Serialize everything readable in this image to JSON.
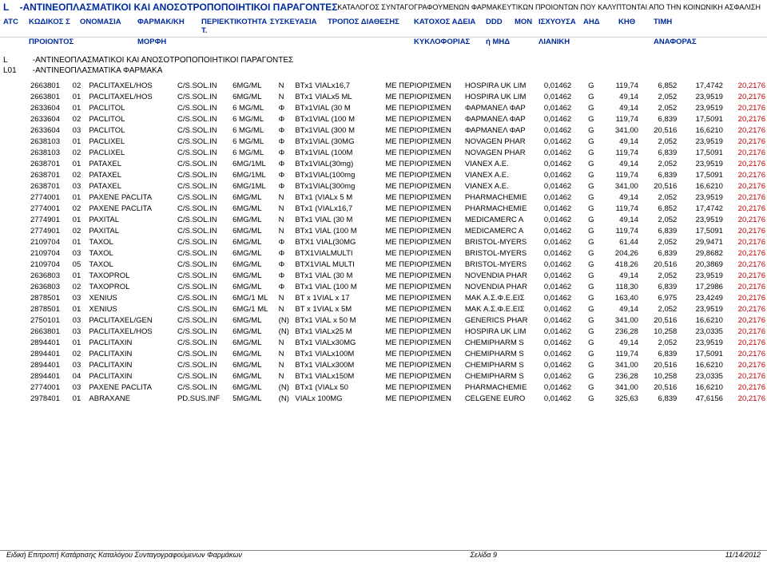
{
  "catalog_header": "ΚΑΤΑΛΟΓΟΣ ΣΥΝΤΑΓΟΓΡΑΦΟΥΜΕΝΩΝ ΦΑΡΜΑΚΕΥΤΙΚΩΝ ΠΡΟΙΟΝΤΩΝ ΠΟΥ ΚΑΛΥΠΤΟΝΤΑΙ ΑΠΟ ΤΗΝ ΚΟΙΝΩΝΙΚΗ ΑΣΦΑΛΙΣΗ",
  "section_code": "L",
  "section_title": "-ΑΝΤΙΝΕΟΠΛΑΣΜΑΤΙΚΟΙ ΚΑΙ ΑΝΟΣΟΤΡΟΠΟΠΟΙΗΤΙΚΟΙ ΠΑΡΑΓΟΝΤΕΣ",
  "headers1": {
    "atc": "ATC",
    "code": "ΚΩΔΙΚΟΣ  Σ",
    "name": "ΟΝΟΜΑΣΙΑ",
    "form": "ΦΑΡΜΑΚ/ΚΗ",
    "conc": "ΠΕΡΙΕΚΤΙΚΟΤΗΤΑ Τ.",
    "pack": "ΣΥΣΚΕΥΑΣΙΑ",
    "route": "ΤΡΟΠΟΣ ΔΙΑΘΕΣΗΣ",
    "holder": "ΚΑΤΟΧΟΣ ΑΔΕΙΑ",
    "ddd": "DDD",
    "unit": "ΜΟΝ",
    "p1": "ΙΣΧΥΟΥΣΑ",
    "p2": "ΑΗΔ",
    "p3": "ΚΗΘ",
    "p4": "ΤΙΜΗ"
  },
  "headers2": {
    "code": "ΠΡΟΙΟΝΤΟΣ",
    "form": "ΜΟΡΦΗ",
    "holder": "ΚΥΚΛΟΦΟΡΙΑΣ",
    "ddd": "ή ΜΗΔ",
    "p1": "ΛΙΑΝΙΚΗ",
    "p4": "ΑΝΑΦΟΡΑΣ"
  },
  "sub_code": "L",
  "sub_title": "-ΑΝΤΙΝΕΟΠΛΑΣΜΑΤΙΚΟΙ ΚΑΙ ΑΝΟΣΟΤΡΟΠΟΠΟΙΗΤΙΚΟΙ ΠΑΡΑΓΟΝΤΕΣ",
  "subsub_code": "L01",
  "subsub_title": "-ΑΝΤΙΝΕΟΠΛΑΣΜΑΤΙΚΑ ΦΑΡΜΑΚΑ",
  "rows": [
    {
      "code": "2663801",
      "seq": "02",
      "name": "PACLITAXEL/HOS",
      "form": "C/S.SOL.IN",
      "conc": "6MG/ML",
      "letter": "N",
      "pack": "BTx1 VIALx16,7",
      "restr": "ΜΕ ΠΕΡΙΟΡΙΣΜΕΝ",
      "holder": "HOSPIRA UK LIM",
      "ddd": "0,01462",
      "unit": "G",
      "p1": "119,74",
      "p2": "6,852",
      "p3": "17,4742",
      "p4": "20,2176"
    },
    {
      "code": "2663801",
      "seq": "01",
      "name": "PACLITAXEL/HOS",
      "form": "C/S.SOL.IN",
      "conc": "6MG/ML",
      "letter": "N",
      "pack": "BTx1 VIALx5 ML",
      "restr": "ΜΕ ΠΕΡΙΟΡΙΣΜΕΝ",
      "holder": "HOSPIRA UK LIM",
      "ddd": "0,01462",
      "unit": "G",
      "p1": "49,14",
      "p2": "2,052",
      "p3": "23,9519",
      "p4": "20,2176"
    },
    {
      "code": "2633604",
      "seq": "01",
      "name": "PACLITOL",
      "form": "C/S.SOL.IN",
      "conc": "6 MG/ML",
      "letter": "Φ",
      "pack": "BTx1VIAL (30 M",
      "restr": "ΜΕ ΠΕΡΙΟΡΙΣΜΕΝ",
      "holder": "ΦΑΡΜΑΝΕΛ ΦΑΡ",
      "ddd": "0,01462",
      "unit": "G",
      "p1": "49,14",
      "p2": "2,052",
      "p3": "23,9519",
      "p4": "20,2176"
    },
    {
      "code": "2633604",
      "seq": "02",
      "name": "PACLITOL",
      "form": "C/S.SOL.IN",
      "conc": "6 MG/ML",
      "letter": "Φ",
      "pack": "BTx1VIAL (100 M",
      "restr": "ΜΕ ΠΕΡΙΟΡΙΣΜΕΝ",
      "holder": "ΦΑΡΜΑΝΕΛ ΦΑΡ",
      "ddd": "0,01462",
      "unit": "G",
      "p1": "119,74",
      "p2": "6,839",
      "p3": "17,5091",
      "p4": "20,2176"
    },
    {
      "code": "2633604",
      "seq": "03",
      "name": "PACLITOL",
      "form": "C/S.SOL.IN",
      "conc": "6 MG/ML",
      "letter": "Φ",
      "pack": "BTx1VIAL (300 M",
      "restr": "ΜΕ ΠΕΡΙΟΡΙΣΜΕΝ",
      "holder": "ΦΑΡΜΑΝΕΛ ΦΑΡ",
      "ddd": "0,01462",
      "unit": "G",
      "p1": "341,00",
      "p2": "20,516",
      "p3": "16,6210",
      "p4": "20,2176"
    },
    {
      "code": "2638103",
      "seq": "01",
      "name": "PACLIXEL",
      "form": "C/S.SOL.IN",
      "conc": "6 MG/ML",
      "letter": "Φ",
      "pack": "BTx1VIAL (30MG",
      "restr": "ΜΕ ΠΕΡΙΟΡΙΣΜΕΝ",
      "holder": "NOVAGEN PHAR",
      "ddd": "0,01462",
      "unit": "G",
      "p1": "49,14",
      "p2": "2,052",
      "p3": "23,9519",
      "p4": "20,2176"
    },
    {
      "code": "2638103",
      "seq": "02",
      "name": "PACLIXEL",
      "form": "C/S.SOL.IN",
      "conc": "6 MG/ML",
      "letter": "Φ",
      "pack": "BTx1VIAL (100M",
      "restr": "ΜΕ ΠΕΡΙΟΡΙΣΜΕΝ",
      "holder": "NOVAGEN PHAR",
      "ddd": "0,01462",
      "unit": "G",
      "p1": "119,74",
      "p2": "6,839",
      "p3": "17,5091",
      "p4": "20,2176"
    },
    {
      "code": "2638701",
      "seq": "01",
      "name": "PATAXEL",
      "form": "C/S.SOL.IN",
      "conc": "6MG/1ML",
      "letter": "Φ",
      "pack": "BTx1VIAL(30mg)",
      "restr": "ΜΕ ΠΕΡΙΟΡΙΣΜΕΝ",
      "holder": "VIANEX A.E.",
      "ddd": "0,01462",
      "unit": "G",
      "p1": "49,14",
      "p2": "2,052",
      "p3": "23,9519",
      "p4": "20,2176"
    },
    {
      "code": "2638701",
      "seq": "02",
      "name": "PATAXEL",
      "form": "C/S.SOL.IN",
      "conc": "6MG/1ML",
      "letter": "Φ",
      "pack": "BTx1VIAL(100mg",
      "restr": "ΜΕ ΠΕΡΙΟΡΙΣΜΕΝ",
      "holder": "VIANEX A.E.",
      "ddd": "0,01462",
      "unit": "G",
      "p1": "119,74",
      "p2": "6,839",
      "p3": "17,5091",
      "p4": "20,2176"
    },
    {
      "code": "2638701",
      "seq": "03",
      "name": "PATAXEL",
      "form": "C/S.SOL.IN",
      "conc": "6MG/1ML",
      "letter": "Φ",
      "pack": "BTx1VIAL(300mg",
      "restr": "ΜΕ ΠΕΡΙΟΡΙΣΜΕΝ",
      "holder": "VIANEX A.E.",
      "ddd": "0,01462",
      "unit": "G",
      "p1": "341,00",
      "p2": "20,516",
      "p3": "16,6210",
      "p4": "20,2176"
    },
    {
      "code": "2774001",
      "seq": "01",
      "name": "PAXENE PACLITA",
      "form": "C/S.SOL.IN",
      "conc": "6MG/ML",
      "letter": "N",
      "pack": "BTx1 (VIALx 5 M",
      "restr": "ΜΕ ΠΕΡΙΟΡΙΣΜΕΝ",
      "holder": "PHARMACHEMIE",
      "ddd": "0,01462",
      "unit": "G",
      "p1": "49,14",
      "p2": "2,052",
      "p3": "23,9519",
      "p4": "20,2176"
    },
    {
      "code": "2774001",
      "seq": "02",
      "name": "PAXENE PACLITA",
      "form": "C/S.SOL.IN",
      "conc": "6MG/ML",
      "letter": "N",
      "pack": "BTx1 (VIALx16,7",
      "restr": "ΜΕ ΠΕΡΙΟΡΙΣΜΕΝ",
      "holder": "PHARMACHEMIE",
      "ddd": "0,01462",
      "unit": "G",
      "p1": "119,74",
      "p2": "6,852",
      "p3": "17,4742",
      "p4": "20,2176"
    },
    {
      "code": "2774901",
      "seq": "01",
      "name": "PAXITAL",
      "form": "C/S.SOL.IN",
      "conc": "6MG/ML",
      "letter": "N",
      "pack": "BTx1 VIAL (30 M",
      "restr": "ΜΕ ΠΕΡΙΟΡΙΣΜΕΝ",
      "holder": "MEDICAMERC A",
      "ddd": "0,01462",
      "unit": "G",
      "p1": "49,14",
      "p2": "2,052",
      "p3": "23,9519",
      "p4": "20,2176"
    },
    {
      "code": "2774901",
      "seq": "02",
      "name": "PAXITAL",
      "form": "C/S.SOL.IN",
      "conc": "6MG/ML",
      "letter": "N",
      "pack": "BTx1 VIAL (100 M",
      "restr": "ΜΕ ΠΕΡΙΟΡΙΣΜΕΝ",
      "holder": "MEDICAMERC A",
      "ddd": "0,01462",
      "unit": "G",
      "p1": "119,74",
      "p2": "6,839",
      "p3": "17,5091",
      "p4": "20,2176"
    },
    {
      "code": "2109704",
      "seq": "01",
      "name": "TAXOL",
      "form": "C/S.SOL.IN",
      "conc": "6MG/ML",
      "letter": "Φ",
      "pack": "BTX1 VIAL(30MG",
      "restr": "ΜΕ ΠΕΡΙΟΡΙΣΜΕΝ",
      "holder": "BRISTOL-MYERS",
      "ddd": "0,01462",
      "unit": "G",
      "p1": "61,44",
      "p2": "2,052",
      "p3": "29,9471",
      "p4": "20,2176"
    },
    {
      "code": "2109704",
      "seq": "03",
      "name": "TAXOL",
      "form": "C/S.SOL.IN",
      "conc": "6MG/ML",
      "letter": "Φ",
      "pack": "BTX1VIALMULTI",
      "restr": "ΜΕ ΠΕΡΙΟΡΙΣΜΕΝ",
      "holder": "BRISTOL-MYERS",
      "ddd": "0,01462",
      "unit": "G",
      "p1": "204,26",
      "p2": "6,839",
      "p3": "29,8682",
      "p4": "20,2176"
    },
    {
      "code": "2109704",
      "seq": "05",
      "name": "TAXOL",
      "form": "C/S.SOL.IN",
      "conc": "6MG/ML",
      "letter": "Φ",
      "pack": "BTX1VIAL MULTI",
      "restr": "ΜΕ ΠΕΡΙΟΡΙΣΜΕΝ",
      "holder": "BRISTOL-MYERS",
      "ddd": "0,01462",
      "unit": "G",
      "p1": "418,26",
      "p2": "20,516",
      "p3": "20,3869",
      "p4": "20,2176"
    },
    {
      "code": "2636803",
      "seq": "01",
      "name": "TAXOPROL",
      "form": "C/S.SOL.IN",
      "conc": "6MG/ML",
      "letter": "Φ",
      "pack": "BTx1 VIAL (30 M",
      "restr": "ΜΕ ΠΕΡΙΟΡΙΣΜΕΝ",
      "holder": "NOVENDIA PHAR",
      "ddd": "0,01462",
      "unit": "G",
      "p1": "49,14",
      "p2": "2,052",
      "p3": "23,9519",
      "p4": "20,2176"
    },
    {
      "code": "2636803",
      "seq": "02",
      "name": "TAXOPROL",
      "form": "C/S.SOL.IN",
      "conc": "6MG/ML",
      "letter": "Φ",
      "pack": "BTx1 VIAL (100 M",
      "restr": "ΜΕ ΠΕΡΙΟΡΙΣΜΕΝ",
      "holder": "NOVENDIA PHAR",
      "ddd": "0,01462",
      "unit": "G",
      "p1": "118,30",
      "p2": "6,839",
      "p3": "17,2986",
      "p4": "20,2176"
    },
    {
      "code": "2878501",
      "seq": "03",
      "name": "XENIUS",
      "form": "C/S.SOL.IN",
      "conc": "6MG/1 ML",
      "letter": "N",
      "pack": "BT x 1VIAL x  17",
      "restr": "ΜΕ ΠΕΡΙΟΡΙΣΜΕΝ",
      "holder": "MAK Α.Σ.Φ.Ε.ΕΙΣ",
      "ddd": "0,01462",
      "unit": "G",
      "p1": "163,40",
      "p2": "6,975",
      "p3": "23,4249",
      "p4": "20,2176"
    },
    {
      "code": "2878501",
      "seq": "01",
      "name": "XENIUS",
      "form": "C/S.SOL.IN",
      "conc": "6MG/1 ML",
      "letter": "N",
      "pack": "BT x 1VIAL x  5M",
      "restr": "ΜΕ ΠΕΡΙΟΡΙΣΜΕΝ",
      "holder": "MAK Α.Σ.Φ.Ε.ΕΙΣ",
      "ddd": "0,01462",
      "unit": "G",
      "p1": "49,14",
      "p2": "2,052",
      "p3": "23,9519",
      "p4": "20,2176"
    },
    {
      "code": "2750101",
      "seq": "03",
      "name": "PACLITAXEL/GEN",
      "form": "C/S.SOL.IN",
      "conc": "6MG/ML",
      "letter": "(N)",
      "pack": "BTx1 VIAL x 50 M",
      "restr": "ΜΕ ΠΕΡΙΟΡΙΣΜΕΝ",
      "holder": "GENERICS PHAR",
      "ddd": "0,01462",
      "unit": "G",
      "p1": "341,00",
      "p2": "20,516",
      "p3": "16,6210",
      "p4": "20,2176"
    },
    {
      "code": "2663801",
      "seq": "03",
      "name": "PACLITAXEL/HOS",
      "form": "C/S.SOL.IN",
      "conc": "6MG/ML",
      "letter": "(N)",
      "pack": "BTx1 VIALx25 M",
      "restr": "ΜΕ ΠΕΡΙΟΡΙΣΜΕΝ",
      "holder": "HOSPIRA UK LIM",
      "ddd": "0,01462",
      "unit": "G",
      "p1": "236,28",
      "p2": "10,258",
      "p3": "23,0335",
      "p4": "20,2176"
    },
    {
      "code": "2894401",
      "seq": "01",
      "name": "PACLITAXIN",
      "form": "C/S.SOL.IN",
      "conc": "6MG/ML",
      "letter": "N",
      "pack": "BTx1 VIALx30MG",
      "restr": "ΜΕ ΠΕΡΙΟΡΙΣΜΕΝ",
      "holder": "CHEMIPHARM S",
      "ddd": "0,01462",
      "unit": "G",
      "p1": "49,14",
      "p2": "2,052",
      "p3": "23,9519",
      "p4": "20,2176"
    },
    {
      "code": "2894401",
      "seq": "02",
      "name": "PACLITAXIN",
      "form": "C/S.SOL.IN",
      "conc": "6MG/ML",
      "letter": "N",
      "pack": "BTx1 VIALx100M",
      "restr": "ΜΕ ΠΕΡΙΟΡΙΣΜΕΝ",
      "holder": "CHEMIPHARM S",
      "ddd": "0,01462",
      "unit": "G",
      "p1": "119,74",
      "p2": "6,839",
      "p3": "17,5091",
      "p4": "20,2176"
    },
    {
      "code": "2894401",
      "seq": "03",
      "name": "PACLITAXIN",
      "form": "C/S.SOL.IN",
      "conc": "6MG/ML",
      "letter": "N",
      "pack": "BTx1 VIALx300M",
      "restr": "ΜΕ ΠΕΡΙΟΡΙΣΜΕΝ",
      "holder": "CHEMIPHARM S",
      "ddd": "0,01462",
      "unit": "G",
      "p1": "341,00",
      "p2": "20,516",
      "p3": "16,6210",
      "p4": "20,2176"
    },
    {
      "code": "2894401",
      "seq": "04",
      "name": "PACLITAXIN",
      "form": "C/S.SOL.IN",
      "conc": "6MG/ML",
      "letter": "N",
      "pack": "BTx1 VIALx150M",
      "restr": "ΜΕ ΠΕΡΙΟΡΙΣΜΕΝ",
      "holder": "CHEMIPHARM S",
      "ddd": "0,01462",
      "unit": "G",
      "p1": "236,28",
      "p2": "10,258",
      "p3": "23,0335",
      "p4": "20,2176"
    },
    {
      "code": "2774001",
      "seq": "03",
      "name": "PAXENE PACLITA",
      "form": "C/S.SOL.IN",
      "conc": "6MG/ML",
      "letter": "(N)",
      "pack": "BTx1 (VIALx 50",
      "restr": "ΜΕ ΠΕΡΙΟΡΙΣΜΕΝ",
      "holder": "PHARMACHEMIE",
      "ddd": "0,01462",
      "unit": "G",
      "p1": "341,00",
      "p2": "20,516",
      "p3": "16,6210",
      "p4": "20,2176"
    },
    {
      "code": "2978401",
      "seq": "01",
      "name": "ABRAXANE",
      "form": "PD.SUS.INF",
      "conc": "5MG/ML",
      "letter": "(N)",
      "pack": "VIALx 100MG",
      "restr": "ΜΕ ΠΕΡΙΟΡΙΣΜΕΝ",
      "holder": "CELGENE EURO",
      "ddd": "0,01462",
      "unit": "G",
      "p1": "325,63",
      "p2": "6,839",
      "p3": "47,6156",
      "p4": "20,2176"
    }
  ],
  "footer_left": "Ειδική Επιτροπή Κατάρτισης Καταλόγου Συνταγογραφούμενων Φαρμάκων",
  "footer_mid": "Σελίδα 9",
  "footer_right": "11/14/2012"
}
